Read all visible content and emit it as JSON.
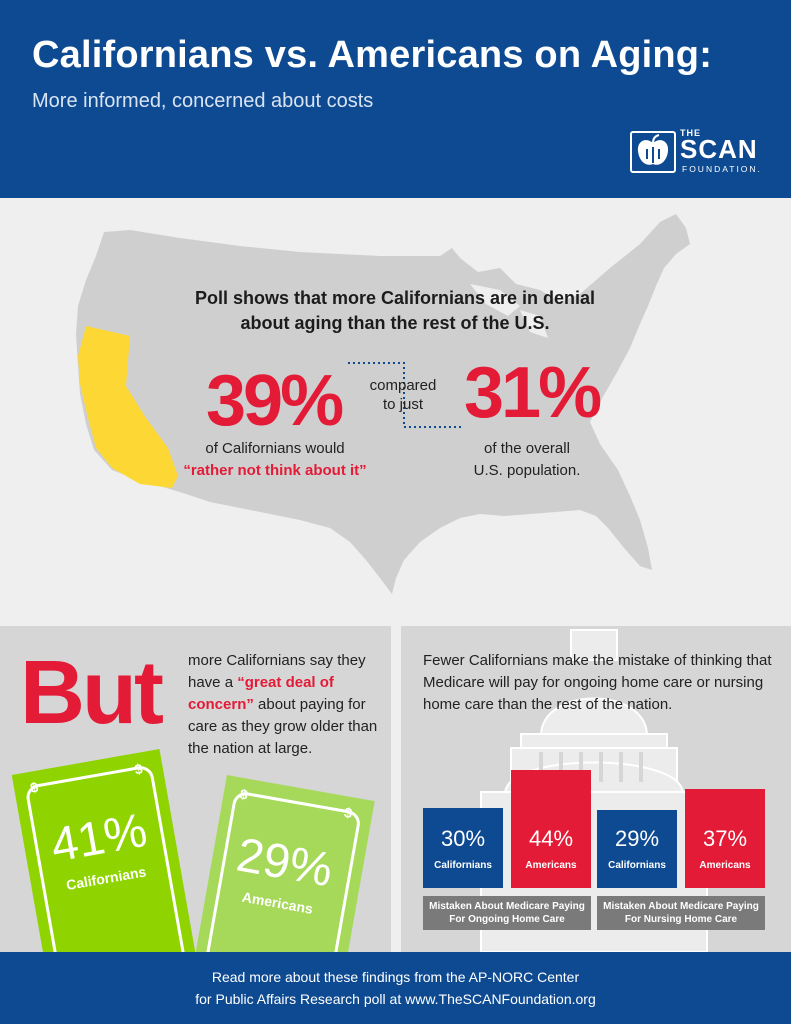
{
  "header": {
    "title": "Californians vs. Americans on Aging:",
    "subtitle": "More informed, concerned about costs",
    "logo": {
      "the": "THE",
      "scan": "SCAN",
      "foundation": "FOUNDATION."
    },
    "colors": {
      "background": "#0e4a92",
      "accent_red": "#e31b37",
      "california_yellow": "#fdd835"
    }
  },
  "map_section": {
    "headline_line1": "Poll shows that more Californians are in denial",
    "headline_line2": "about aging than the rest of the U.S.",
    "compared_line1": "compared",
    "compared_line2": "to just",
    "californians": {
      "pct_text": "39%",
      "caption_line1": "of Californians would",
      "caption_quote": "“rather not think about it”"
    },
    "us": {
      "pct_text": "31%",
      "caption_line1": "of the overall",
      "caption_line2": "U.S. population."
    }
  },
  "concern_panel": {
    "but": "But",
    "text_before": "more Californians say they have a ",
    "text_highlight": "“great deal of concern”",
    "text_after": " about paying for care as they grow older than the nation at large.",
    "bills": [
      {
        "pct_text": "41%",
        "label": "Californians",
        "color": "#8fd400"
      },
      {
        "pct_text": "29%",
        "label": "Americans",
        "color": "#a6d95a"
      }
    ]
  },
  "medicare_panel": {
    "text": "Fewer Californians make the mistake of thinking that Medicare will pay for ongoing home care or nursing home care than the rest of the nation.",
    "group_labels": [
      "Mistaken About Medicare Paying For Ongoing Home Care",
      "Mistaken About Medicare Paying For Nursing Home Care"
    ],
    "series_colors": {
      "Californians": "#0e4a92",
      "Americans": "#e31b37"
    }
  },
  "chart_data": [
    {
      "type": "bar",
      "categories": [
        "Californians",
        "Americans"
      ],
      "values": [
        39,
        31
      ],
      "title": "Poll shows that more Californians are in denial about aging than the rest of the U.S."
    },
    {
      "type": "bar",
      "categories": [
        "Californians",
        "Americans"
      ],
      "values": [
        41,
        29
      ]
    },
    {
      "type": "bar",
      "categories": [
        "Mistaken About Medicare Paying For Ongoing Home Care",
        "Mistaken About Medicare Paying For Nursing Home Care"
      ],
      "series": [
        {
          "name": "Californians",
          "values": [
            30,
            29
          ]
        },
        {
          "name": "Americans",
          "values": [
            44,
            37
          ]
        }
      ],
      "ylim": [
        0,
        44
      ]
    }
  ],
  "footer": {
    "line1": "Read more about these findings from the AP-NORC Center",
    "line2": "for Public Affairs Research poll at www.TheSCANFoundation.org"
  }
}
